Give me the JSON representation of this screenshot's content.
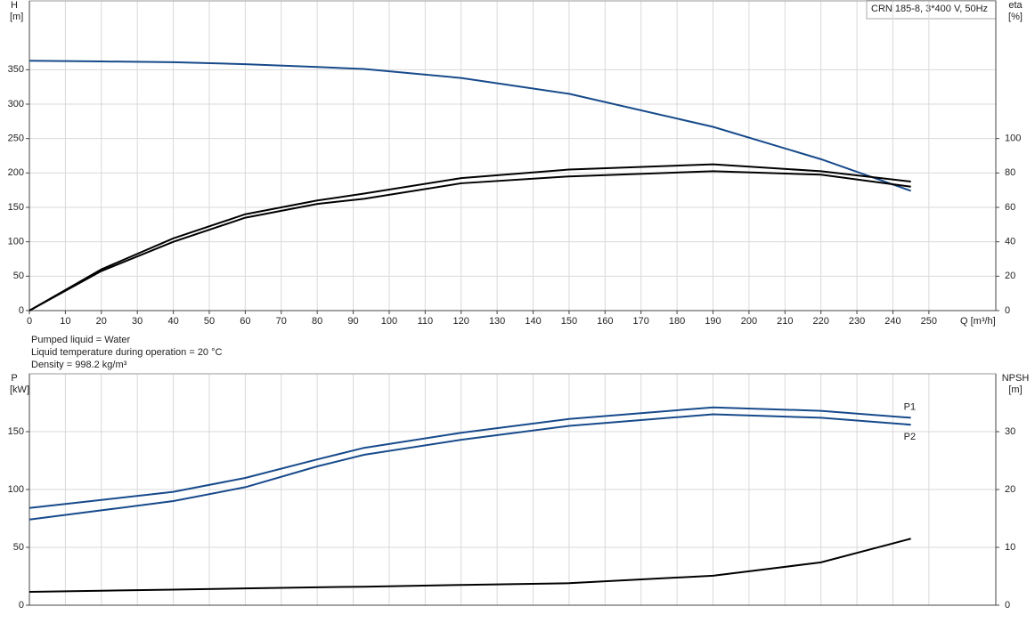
{
  "chart_data": [
    {
      "type": "line",
      "title": "CRN 185-8, 3*400 V, 50Hz",
      "ylabel": [
        "H",
        "[m]"
      ],
      "y2label": [
        "eta",
        "[%]"
      ],
      "xlabel": "Q [m³/h]",
      "annotations": [
        "Pumped liquid = Water",
        "Liquid temperature during operation = 20 °C",
        "Density = 998.2 kg/m³"
      ],
      "x": [
        0,
        20,
        40,
        60,
        80,
        93,
        120,
        150,
        190,
        220,
        245
      ],
      "series": [
        {
          "color": "#174a8b",
          "axis": "y",
          "values": [
            363,
            362,
            361,
            358,
            354,
            351,
            338,
            315,
            267,
            220,
            174
          ]
        },
        {
          "color": "#000000",
          "axis": "y2",
          "values": [
            0,
            24,
            42,
            56,
            64,
            68,
            77,
            82,
            85,
            81,
            75
          ]
        },
        {
          "color": "#000000",
          "axis": "y2",
          "values": [
            0,
            23,
            40,
            54,
            62,
            65,
            74,
            78,
            81,
            79,
            72
          ]
        }
      ],
      "xlim": [
        0,
        268.6
      ],
      "xticks": [
        0,
        10,
        20,
        30,
        40,
        50,
        60,
        70,
        80,
        90,
        100,
        110,
        120,
        130,
        140,
        150,
        160,
        170,
        180,
        190,
        200,
        210,
        220,
        230,
        240,
        250
      ],
      "ylim": [
        0,
        450
      ],
      "yticks": [
        0,
        50,
        100,
        150,
        200,
        250,
        300,
        350
      ],
      "y2lim": [
        0,
        180
      ],
      "y2ticks": [
        0,
        20,
        40,
        60,
        80,
        100
      ],
      "grid": true
    },
    {
      "type": "line",
      "ylabel": [
        "P",
        "[kW]"
      ],
      "y2label": [
        "NPSH",
        "[m]"
      ],
      "x": [
        0,
        20,
        40,
        60,
        80,
        93,
        120,
        150,
        190,
        220,
        245
      ],
      "series": [
        {
          "name": "P1",
          "color": "#174a8b",
          "axis": "y",
          "values": [
            84,
            91,
            98,
            110,
            126,
            136,
            149,
            161,
            171,
            168,
            162
          ]
        },
        {
          "name": "P2",
          "color": "#174a8b",
          "axis": "y",
          "values": [
            74,
            82,
            90,
            102,
            120,
            130,
            143,
            155,
            165,
            162,
            156
          ]
        },
        {
          "color": "#000000",
          "axis": "y2",
          "values": [
            2.3,
            2.5,
            2.7,
            2.9,
            3.1,
            3.2,
            3.5,
            3.8,
            5.1,
            7.4,
            11.5
          ]
        }
      ],
      "xlim": [
        0,
        268.6
      ],
      "xticks": [
        0,
        10,
        20,
        30,
        40,
        50,
        60,
        70,
        80,
        90,
        100,
        110,
        120,
        130,
        140,
        150,
        160,
        170,
        180,
        190,
        200,
        210,
        220,
        230,
        240,
        250
      ],
      "ylim": [
        0,
        200
      ],
      "yticks": [
        0,
        50,
        100,
        150
      ],
      "y2lim": [
        0,
        40
      ],
      "y2ticks": [
        0,
        10,
        20,
        30
      ],
      "grid": true
    }
  ]
}
